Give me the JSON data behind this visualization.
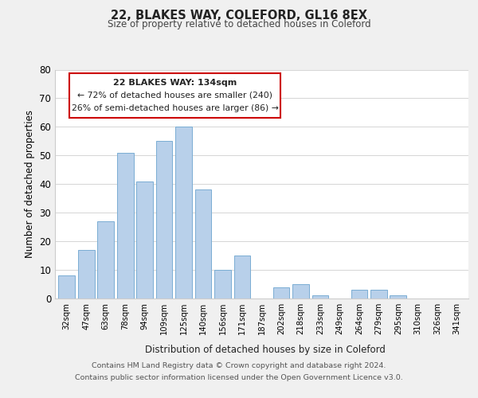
{
  "title": "22, BLAKES WAY, COLEFORD, GL16 8EX",
  "subtitle": "Size of property relative to detached houses in Coleford",
  "xlabel": "Distribution of detached houses by size in Coleford",
  "ylabel": "Number of detached properties",
  "bar_labels": [
    "32sqm",
    "47sqm",
    "63sqm",
    "78sqm",
    "94sqm",
    "109sqm",
    "125sqm",
    "140sqm",
    "156sqm",
    "171sqm",
    "187sqm",
    "202sqm",
    "218sqm",
    "233sqm",
    "249sqm",
    "264sqm",
    "279sqm",
    "295sqm",
    "310sqm",
    "326sqm",
    "341sqm"
  ],
  "bar_values": [
    8,
    17,
    27,
    51,
    41,
    55,
    60,
    38,
    10,
    15,
    0,
    4,
    5,
    1,
    0,
    3,
    3,
    1,
    0,
    0,
    0
  ],
  "bar_color": "#b8d0ea",
  "bar_edge_color": "#7aadd4",
  "background_color": "#f0f0f0",
  "plot_bg_color": "#ffffff",
  "ylim": [
    0,
    80
  ],
  "yticks": [
    0,
    10,
    20,
    30,
    40,
    50,
    60,
    70,
    80
  ],
  "annotation_box_text_line1": "22 BLAKES WAY: 134sqm",
  "annotation_box_text_line2": "← 72% of detached houses are smaller (240)",
  "annotation_box_text_line3": "26% of semi-detached houses are larger (86) →",
  "annotation_box_color": "#ffffff",
  "annotation_box_edge_color": "#cc0000",
  "footer_line1": "Contains HM Land Registry data © Crown copyright and database right 2024.",
  "footer_line2": "Contains public sector information licensed under the Open Government Licence v3.0."
}
